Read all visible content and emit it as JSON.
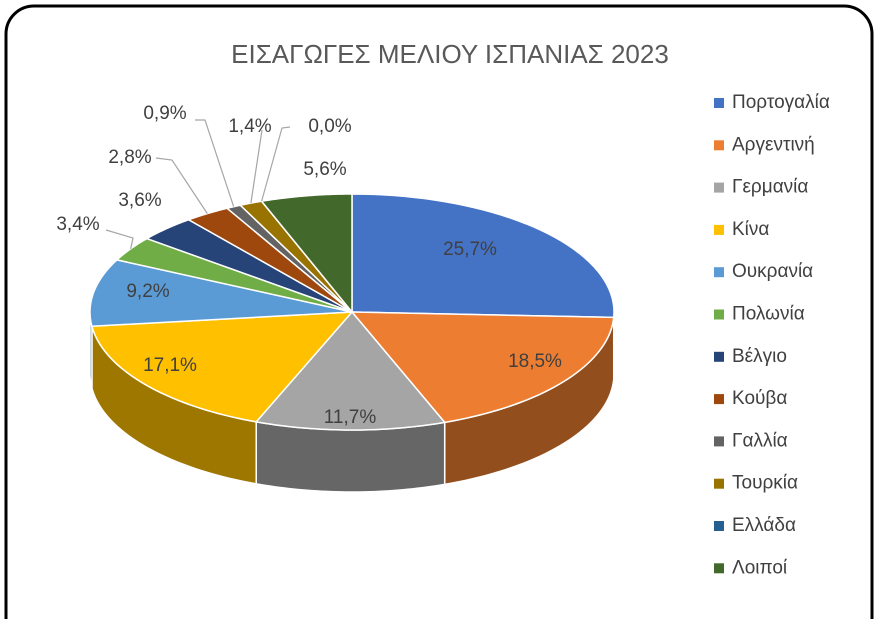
{
  "chart_data": {
    "type": "pie3d",
    "title": "ΕΙΣΑΓΩΓΕΣ ΜΕΛΙΟΥ ΙΣΠΑΝΙΑΣ 2023",
    "categories": [
      "Πορτογαλία",
      "Αργεντινή",
      "Γερμανία",
      "Κίνα",
      "Ουκρανία",
      "Πολωνία",
      "Βέλγιο",
      "Κούβα",
      "Γαλλία",
      "Τουρκία",
      "Ελλάδα",
      "Λοιποί"
    ],
    "values": [
      25.7,
      18.5,
      11.7,
      17.1,
      9.2,
      3.4,
      3.6,
      2.8,
      0.9,
      1.4,
      0.0,
      5.6
    ],
    "value_labels": [
      "25,7%",
      "18,5%",
      "11,7%",
      "17,1%",
      "9,2%",
      "3,4%",
      "3,6%",
      "2,8%",
      "0,9%",
      "1,4%",
      "0,0%",
      "5,6%"
    ],
    "colors": [
      "#4472c4",
      "#ed7d31",
      "#a5a5a5",
      "#ffc000",
      "#5b9bd5",
      "#70ad47",
      "#264478",
      "#9e480e",
      "#636363",
      "#997300",
      "#255e91",
      "#43682b"
    ],
    "legend": "right"
  }
}
